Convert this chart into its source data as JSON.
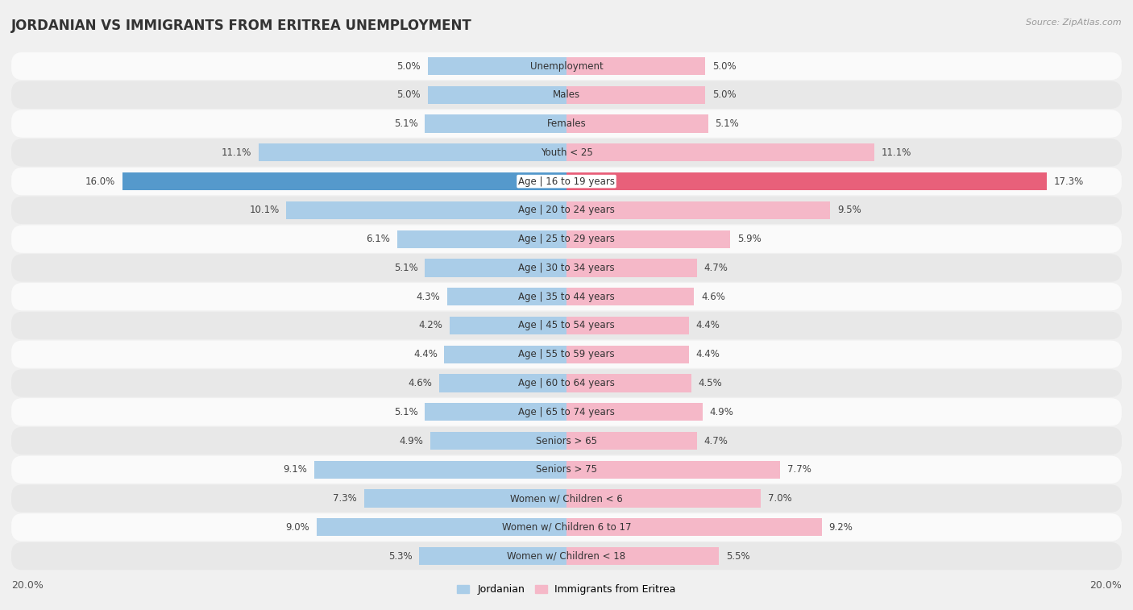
{
  "title": "JORDANIAN VS IMMIGRANTS FROM ERITREA UNEMPLOYMENT",
  "source": "Source: ZipAtlas.com",
  "categories": [
    "Unemployment",
    "Males",
    "Females",
    "Youth < 25",
    "Age | 16 to 19 years",
    "Age | 20 to 24 years",
    "Age | 25 to 29 years",
    "Age | 30 to 34 years",
    "Age | 35 to 44 years",
    "Age | 45 to 54 years",
    "Age | 55 to 59 years",
    "Age | 60 to 64 years",
    "Age | 65 to 74 years",
    "Seniors > 65",
    "Seniors > 75",
    "Women w/ Children < 6",
    "Women w/ Children 6 to 17",
    "Women w/ Children < 18"
  ],
  "jordanian": [
    5.0,
    5.0,
    5.1,
    11.1,
    16.0,
    10.1,
    6.1,
    5.1,
    4.3,
    4.2,
    4.4,
    4.6,
    5.1,
    4.9,
    9.1,
    7.3,
    9.0,
    5.3
  ],
  "eritrea": [
    5.0,
    5.0,
    5.1,
    11.1,
    17.3,
    9.5,
    5.9,
    4.7,
    4.6,
    4.4,
    4.4,
    4.5,
    4.9,
    4.7,
    7.7,
    7.0,
    9.2,
    5.5
  ],
  "jordanian_color": "#aacde8",
  "eritrea_color": "#f5b8c8",
  "jordanian_highlight_color": "#5599cc",
  "eritrea_highlight_color": "#e8607a",
  "highlight_row": 4,
  "max_val": 20.0,
  "bg_color": "#f0f0f0",
  "row_light_color": "#fafafa",
  "row_dark_color": "#e8e8e8",
  "bar_height": 0.62,
  "legend_jordanian": "Jordanian",
  "legend_eritrea": "Immigrants from Eritrea"
}
